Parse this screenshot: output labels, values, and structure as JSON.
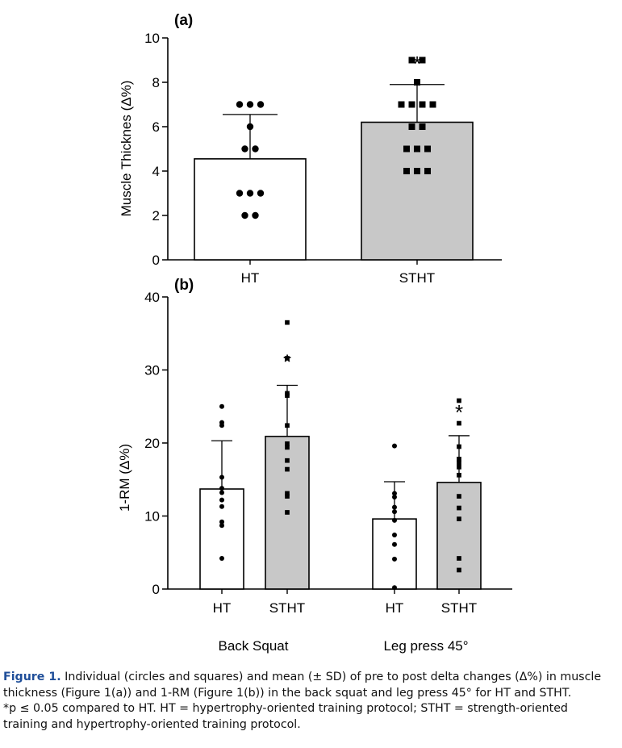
{
  "chart_data": [
    {
      "type": "bar",
      "panel_label": "(a)",
      "ylabel": "Muscle Thicknes (Δ%)",
      "ylim": [
        0,
        10
      ],
      "yticks": [
        0,
        2,
        4,
        6,
        8,
        10
      ],
      "categories": [
        "HT",
        "STHT"
      ],
      "values": [
        4.55,
        6.2
      ],
      "sd": [
        2.0,
        1.7
      ],
      "significance": [
        "",
        "*"
      ],
      "points": [
        [
          7,
          7,
          7,
          6,
          5,
          5,
          3,
          3,
          3,
          2,
          2
        ],
        [
          9,
          9,
          8,
          7,
          7,
          7,
          7,
          6,
          6,
          5,
          5,
          5,
          4,
          4,
          4
        ]
      ],
      "fill_colors": [
        "#ffffff",
        "#c8c8c8"
      ]
    },
    {
      "type": "bar",
      "panel_label": "(b)",
      "ylabel": "1-RM (Δ%)",
      "ylim": [
        0,
        40
      ],
      "yticks": [
        0,
        10,
        20,
        30,
        40
      ],
      "groups": [
        "Back Squat",
        "Leg press 45°"
      ],
      "categories": [
        "HT",
        "STHT",
        "HT",
        "STHT"
      ],
      "values": [
        13.7,
        20.9,
        9.6,
        14.6
      ],
      "sd": [
        6.6,
        7.0,
        5.1,
        6.4
      ],
      "significance": [
        "",
        "*",
        "",
        "*"
      ],
      "points": [
        [
          25,
          22.8,
          22.4,
          15.3,
          13.8,
          13.2,
          12.2,
          11.3,
          9.2,
          8.7,
          4.2
        ],
        [
          36.5,
          31.6,
          26.8,
          26.5,
          22.4,
          19.9,
          19.4,
          17.6,
          16.4,
          13.1,
          12.7,
          10.5
        ],
        [
          19.6,
          13.1,
          12.6,
          11.2,
          10.6,
          9.4,
          7.4,
          6.1,
          4.1,
          0.2
        ],
        [
          25.8,
          22.7,
          19.5,
          17.8,
          17.3,
          16.7,
          15.6,
          12.7,
          11.1,
          9.6,
          4.2,
          2.6
        ]
      ],
      "fill_colors": [
        "#ffffff",
        "#c8c8c8",
        "#ffffff",
        "#c8c8c8"
      ]
    }
  ],
  "caption": {
    "label": "Figure 1.",
    "lines": [
      " Individual (circles and squares) and mean (± SD) of pre to post delta changes (Δ%) in muscle",
      "thickness (Figure 1(a)) and 1-RM (Figure 1(b)) in the back squat and leg press 45° for HT and STHT.",
      "*p ≤ 0.05 compared to HT. HT = hypertrophy-oriented training protocol; STHT = strength-oriented",
      "training and hypertrophy-oriented training protocol."
    ]
  }
}
